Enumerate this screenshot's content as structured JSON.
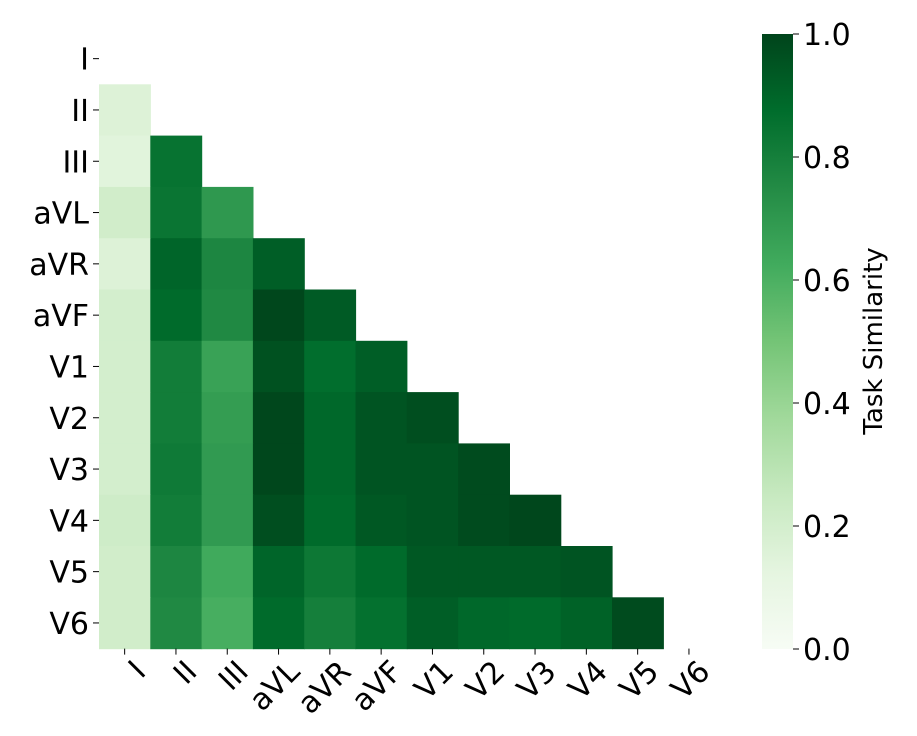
{
  "chart_data": {
    "type": "heatmap",
    "mask": "upper-triangle-including-diagonal",
    "labels": [
      "I",
      "II",
      "III",
      "aVL",
      "aVR",
      "aVF",
      "V1",
      "V2",
      "V3",
      "V4",
      "V5",
      "V6"
    ],
    "rows": [
      [],
      [
        0.16
      ],
      [
        0.14,
        0.85
      ],
      [
        0.21,
        0.84,
        0.7
      ],
      [
        0.16,
        0.9,
        0.77,
        0.92
      ],
      [
        0.2,
        0.88,
        0.76,
        0.99,
        0.93
      ],
      [
        0.2,
        0.81,
        0.66,
        0.96,
        0.87,
        0.92
      ],
      [
        0.2,
        0.81,
        0.68,
        0.99,
        0.89,
        0.95,
        0.97
      ],
      [
        0.2,
        0.82,
        0.69,
        0.99,
        0.89,
        0.95,
        0.95,
        0.98
      ],
      [
        0.22,
        0.81,
        0.69,
        0.97,
        0.88,
        0.94,
        0.95,
        0.98,
        0.99
      ],
      [
        0.21,
        0.77,
        0.63,
        0.9,
        0.83,
        0.88,
        0.94,
        0.94,
        0.94,
        0.95
      ],
      [
        0.21,
        0.76,
        0.61,
        0.88,
        0.8,
        0.86,
        0.92,
        0.89,
        0.88,
        0.91,
        0.98
      ]
    ],
    "colorbar": {
      "label": "Task Similarity",
      "vmin": 0.0,
      "vmax": 1.0,
      "ticks": [
        "0.0",
        "0.2",
        "0.4",
        "0.6",
        "0.8",
        "1.0"
      ],
      "colormap": "Greens"
    },
    "xlabel": "",
    "ylabel": "",
    "title": ""
  }
}
